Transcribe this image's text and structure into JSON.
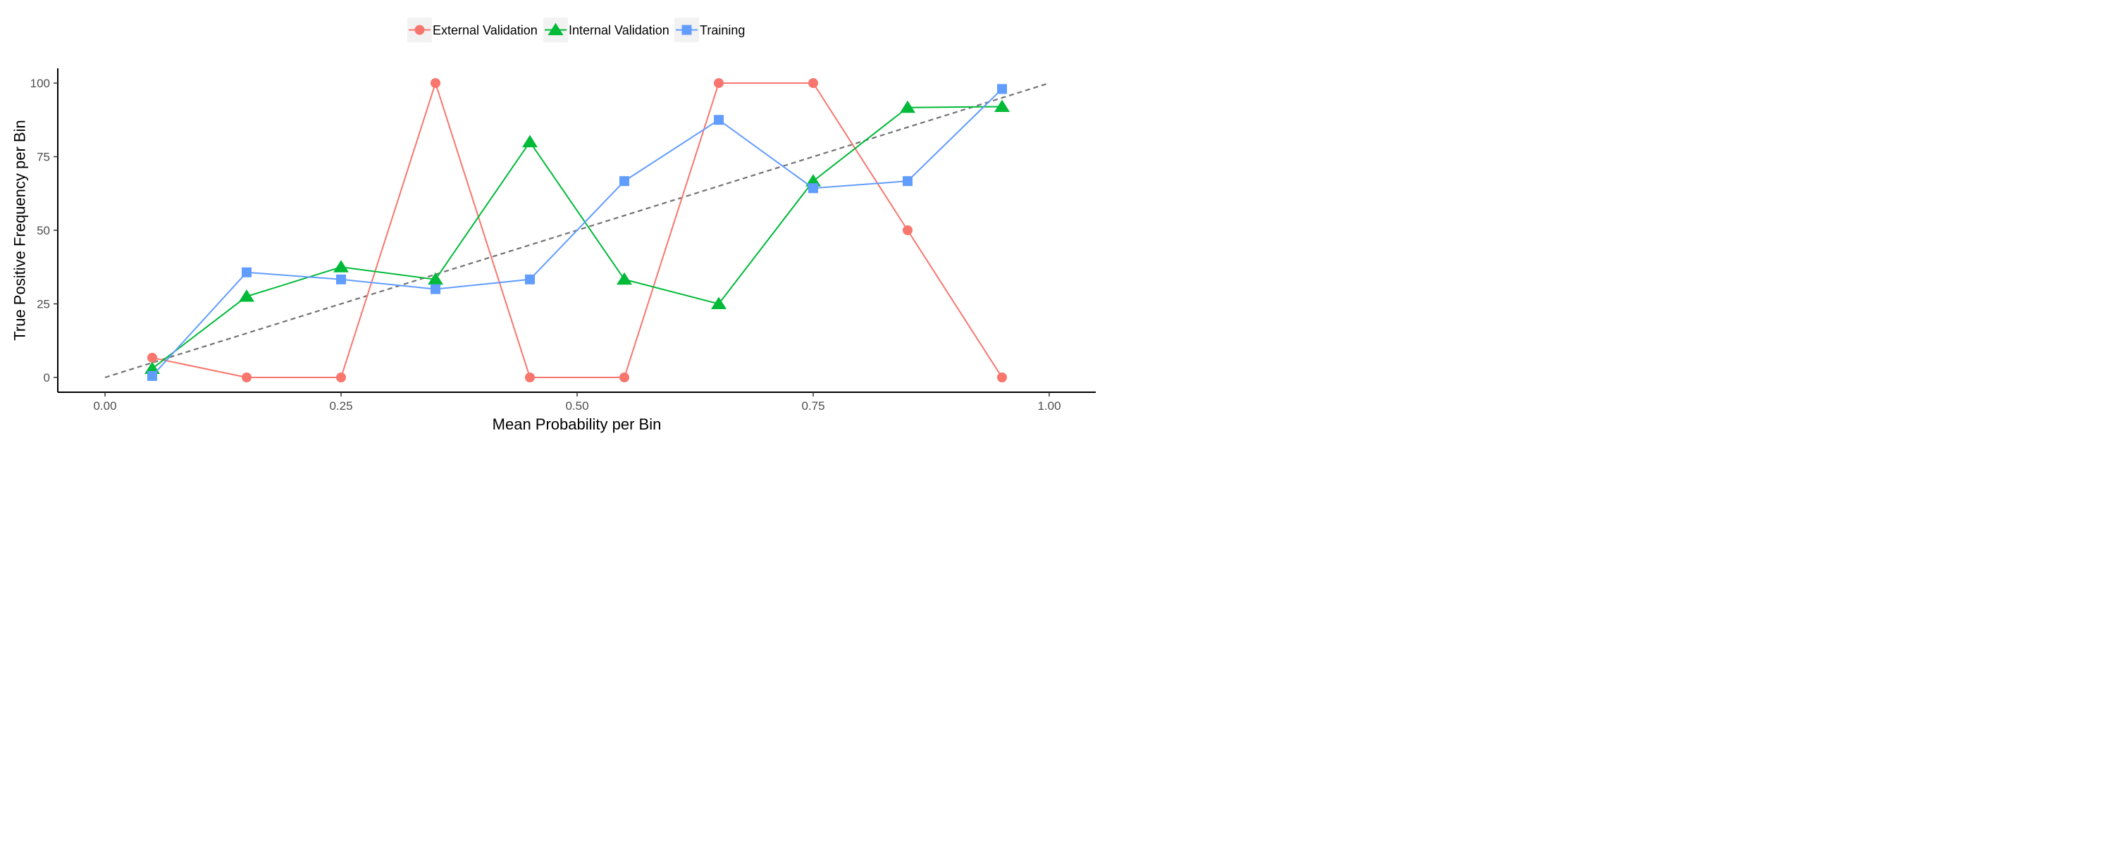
{
  "chart_data": {
    "type": "line",
    "xlabel": "Mean Probability per Bin",
    "ylabel": "True Positive Frequency per Bin",
    "xlim": [
      0,
      1
    ],
    "ylim": [
      0,
      100
    ],
    "x_ticks": [
      0,
      0.25,
      0.5,
      0.75,
      1
    ],
    "x_tick_labels": [
      "0.00",
      "0.25",
      "0.50",
      "0.75",
      "1.00"
    ],
    "y_ticks": [
      0,
      25,
      50,
      75,
      100
    ],
    "y_tick_labels": [
      "0",
      "25",
      "50",
      "75",
      "100"
    ],
    "grid": false,
    "legend_position": "top",
    "reference_line": {
      "style": "dashed",
      "color": "#737373",
      "x": [
        0,
        1
      ],
      "y": [
        0,
        100
      ]
    },
    "x": [
      0.05,
      0.15,
      0.25,
      0.35,
      0.45,
      0.55,
      0.65,
      0.75,
      0.85,
      0.95
    ],
    "series": [
      {
        "name": "External Validation",
        "color": "#F8766D",
        "marker": "circle",
        "y": [
          6.7,
          0,
          0,
          100,
          0,
          0,
          100,
          100,
          50,
          0
        ]
      },
      {
        "name": "Internal Validation",
        "color": "#00BA38",
        "marker": "triangle",
        "y": [
          3,
          27.5,
          37.5,
          33.3,
          80,
          33.3,
          25,
          66.7,
          91.7,
          92
        ]
      },
      {
        "name": "Training",
        "color": "#619CFF",
        "marker": "square",
        "y": [
          0.5,
          35.7,
          33.3,
          30,
          33.3,
          66.7,
          87.5,
          64.3,
          66.7,
          98
        ]
      }
    ]
  }
}
